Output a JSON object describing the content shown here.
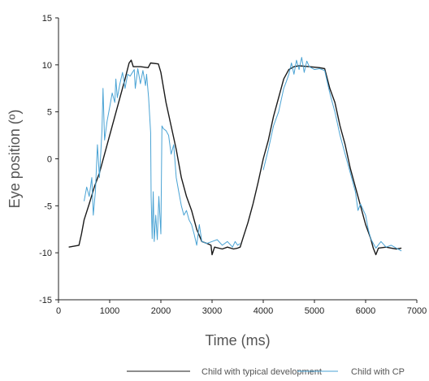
{
  "chart_data": {
    "type": "line",
    "title": "",
    "xlabel": "Time (ms)",
    "ylabel": "Eye position (º)",
    "xlim": [
      0,
      7000
    ],
    "ylim": [
      -15,
      15
    ],
    "xticks": [
      0,
      1000,
      2000,
      3000,
      4000,
      5000,
      6000,
      7000
    ],
    "yticks": [
      -15,
      -10,
      -5,
      0,
      5,
      10,
      15
    ],
    "grid": false,
    "legend_position": "bottom",
    "series": [
      {
        "name": "Child with typical development",
        "color": "#1a1a1a",
        "points": [
          [
            200,
            -9.4
          ],
          [
            300,
            -9.3
          ],
          [
            400,
            -9.2
          ],
          [
            450,
            -8.0
          ],
          [
            500,
            -6.5
          ],
          [
            600,
            -4.8
          ],
          [
            700,
            -3.0
          ],
          [
            800,
            -1.5
          ],
          [
            900,
            0.5
          ],
          [
            1000,
            2.5
          ],
          [
            1100,
            4.5
          ],
          [
            1200,
            6.5
          ],
          [
            1300,
            8.5
          ],
          [
            1380,
            10.2
          ],
          [
            1420,
            10.5
          ],
          [
            1460,
            9.8
          ],
          [
            1600,
            9.8
          ],
          [
            1750,
            9.7
          ],
          [
            1800,
            10.2
          ],
          [
            1950,
            10.1
          ],
          [
            2000,
            9.2
          ],
          [
            2100,
            6.0
          ],
          [
            2200,
            3.5
          ],
          [
            2300,
            1.0
          ],
          [
            2400,
            -2.0
          ],
          [
            2500,
            -4.0
          ],
          [
            2600,
            -5.5
          ],
          [
            2700,
            -7.5
          ],
          [
            2800,
            -8.8
          ],
          [
            2900,
            -9.0
          ],
          [
            2980,
            -9.2
          ],
          [
            3000,
            -10.2
          ],
          [
            3050,
            -9.4
          ],
          [
            3200,
            -9.6
          ],
          [
            3300,
            -9.4
          ],
          [
            3420,
            -9.6
          ],
          [
            3500,
            -9.5
          ],
          [
            3550,
            -9.4
          ],
          [
            3600,
            -8.5
          ],
          [
            3700,
            -6.8
          ],
          [
            3800,
            -4.8
          ],
          [
            3900,
            -2.5
          ],
          [
            4000,
            0.0
          ],
          [
            4100,
            2.0
          ],
          [
            4200,
            4.5
          ],
          [
            4300,
            6.5
          ],
          [
            4400,
            8.5
          ],
          [
            4500,
            9.5
          ],
          [
            4600,
            9.8
          ],
          [
            4700,
            9.9
          ],
          [
            4900,
            9.8
          ],
          [
            5100,
            9.7
          ],
          [
            5200,
            9.6
          ],
          [
            5300,
            7.5
          ],
          [
            5400,
            6.0
          ],
          [
            5500,
            3.5
          ],
          [
            5600,
            1.5
          ],
          [
            5700,
            -1.0
          ],
          [
            5800,
            -3.0
          ],
          [
            5900,
            -5.0
          ],
          [
            6000,
            -7.0
          ],
          [
            6100,
            -8.5
          ],
          [
            6150,
            -9.5
          ],
          [
            6200,
            -10.2
          ],
          [
            6250,
            -9.5
          ],
          [
            6400,
            -9.4
          ],
          [
            6500,
            -9.5
          ],
          [
            6600,
            -9.6
          ],
          [
            6700,
            -9.5
          ]
        ]
      },
      {
        "name": "Child with CP",
        "color": "#4aa3d4",
        "points": [
          [
            500,
            -4.5
          ],
          [
            550,
            -3.0
          ],
          [
            600,
            -4.0
          ],
          [
            650,
            -2.0
          ],
          [
            680,
            -6.0
          ],
          [
            720,
            -3.5
          ],
          [
            760,
            1.5
          ],
          [
            800,
            -2.0
          ],
          [
            850,
            3.0
          ],
          [
            870,
            7.5
          ],
          [
            900,
            2.0
          ],
          [
            950,
            4.0
          ],
          [
            1000,
            5.5
          ],
          [
            1050,
            7.0
          ],
          [
            1100,
            6.0
          ],
          [
            1120,
            8.5
          ],
          [
            1150,
            6.5
          ],
          [
            1200,
            8.0
          ],
          [
            1250,
            9.2
          ],
          [
            1300,
            7.5
          ],
          [
            1350,
            9.0
          ],
          [
            1400,
            8.8
          ],
          [
            1480,
            9.5
          ],
          [
            1500,
            7.5
          ],
          [
            1550,
            9.6
          ],
          [
            1600,
            8.0
          ],
          [
            1650,
            9.4
          ],
          [
            1700,
            7.8
          ],
          [
            1720,
            9.0
          ],
          [
            1760,
            6.5
          ],
          [
            1800,
            2.8
          ],
          [
            1810,
            -4.0
          ],
          [
            1830,
            -8.5
          ],
          [
            1850,
            -3.5
          ],
          [
            1870,
            -8.8
          ],
          [
            1900,
            -6.0
          ],
          [
            1930,
            -8.6
          ],
          [
            1960,
            -4.0
          ],
          [
            2000,
            -8.0
          ],
          [
            2020,
            3.5
          ],
          [
            2050,
            3.2
          ],
          [
            2100,
            3.0
          ],
          [
            2150,
            2.5
          ],
          [
            2200,
            0.5
          ],
          [
            2250,
            1.5
          ],
          [
            2300,
            -2.0
          ],
          [
            2350,
            -3.5
          ],
          [
            2400,
            -5.0
          ],
          [
            2450,
            -6.0
          ],
          [
            2500,
            -5.5
          ],
          [
            2550,
            -6.5
          ],
          [
            2600,
            -7.0
          ],
          [
            2650,
            -8.0
          ],
          [
            2700,
            -9.2
          ],
          [
            2750,
            -7.0
          ],
          [
            2800,
            -8.8
          ],
          [
            2900,
            -9.0
          ],
          [
            3000,
            -8.8
          ],
          [
            3100,
            -8.6
          ],
          [
            3200,
            -9.2
          ],
          [
            3300,
            -8.8
          ],
          [
            3400,
            -9.4
          ],
          [
            3450,
            -8.8
          ],
          [
            3500,
            -9.2
          ],
          [
            3550,
            -9.0
          ]
        ],
        "segment2": [
          [
            4000,
            -1.2
          ],
          [
            4100,
            1.0
          ],
          [
            4200,
            3.5
          ],
          [
            4300,
            5.0
          ],
          [
            4400,
            7.5
          ],
          [
            4450,
            8.2
          ],
          [
            4500,
            9.0
          ],
          [
            4550,
            10.2
          ],
          [
            4600,
            9.0
          ],
          [
            4650,
            10.5
          ],
          [
            4700,
            9.5
          ],
          [
            4750,
            10.8
          ],
          [
            4800,
            9.2
          ],
          [
            4850,
            10.4
          ],
          [
            4900,
            9.8
          ],
          [
            5000,
            9.5
          ],
          [
            5100,
            9.6
          ],
          [
            5200,
            9.4
          ],
          [
            5300,
            7.0
          ],
          [
            5350,
            6.0
          ],
          [
            5400,
            5.0
          ],
          [
            5500,
            2.5
          ],
          [
            5600,
            0.5
          ],
          [
            5700,
            -1.5
          ],
          [
            5800,
            -3.5
          ],
          [
            5850,
            -5.5
          ],
          [
            5900,
            -4.8
          ],
          [
            6000,
            -6.0
          ],
          [
            6050,
            -7.5
          ],
          [
            6100,
            -8.5
          ],
          [
            6150,
            -9.0
          ],
          [
            6200,
            -9.5
          ],
          [
            6300,
            -8.8
          ],
          [
            6400,
            -9.4
          ],
          [
            6500,
            -9.2
          ],
          [
            6600,
            -9.5
          ],
          [
            6700,
            -9.8
          ]
        ]
      }
    ]
  }
}
